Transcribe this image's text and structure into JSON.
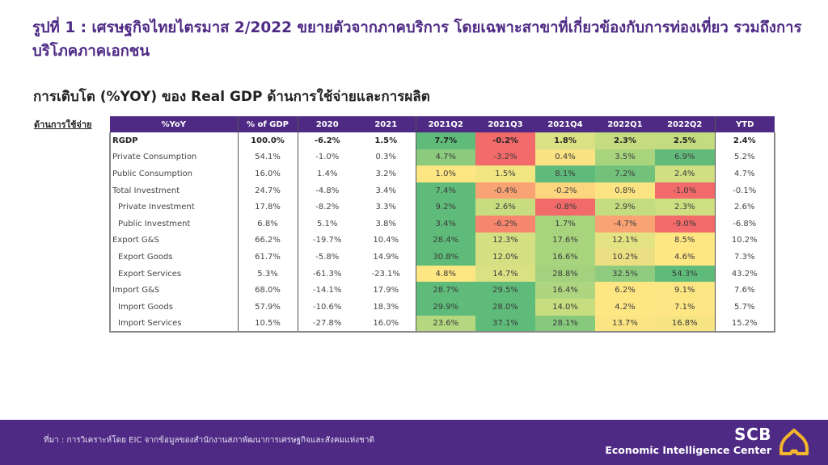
{
  "header": {
    "title": "รูปที่ 1 : เศรษฐกิจไทยไตรมาส 2/2022 ขยายตัวจากภาคบริการ โดยเฉพาะสาขาที่เกี่ยวข้องกับการท่องเที่ยว รวมถึงการบริโภคภาคเอกชน",
    "subtitle": "การเติบโต (%YOY) ของ Real GDP ด้านการใช้จ่ายและการผลิต",
    "side_label": "ด้านการใช้จ่าย"
  },
  "table": {
    "headers": [
      "%YoY",
      "% of GDP",
      "2020",
      "2021",
      "2021Q2",
      "2021Q3",
      "2021Q4",
      "2022Q1",
      "2022Q2",
      "YTD"
    ],
    "rows": [
      {
        "label": "RGDP",
        "indent": false,
        "bold": true,
        "values": [
          "100.0%",
          "-6.2%",
          "1.5%",
          "7.7%",
          "-0.2%",
          "1.8%",
          "2.3%",
          "2.5%",
          "2.4%"
        ],
        "heat": [
          "#5fbb7a",
          "#f26a6a",
          "#d9e184",
          "#c5dc80",
          "#c3dc80"
        ]
      },
      {
        "label": "Private Consumption",
        "indent": false,
        "bold": false,
        "values": [
          "54.1%",
          "-1.0%",
          "0.3%",
          "4.7%",
          "-3.2%",
          "0.4%",
          "3.5%",
          "6.9%",
          "5.2%"
        ],
        "heat": [
          "#8ccb7d",
          "#f26a6a",
          "#fbe283",
          "#a8d47e",
          "#63bb7b"
        ]
      },
      {
        "label": "Public Consumption",
        "indent": false,
        "bold": false,
        "values": [
          "16.0%",
          "1.4%",
          "3.2%",
          "1.0%",
          "1.5%",
          "8.1%",
          "7.2%",
          "2.4%",
          "4.7%"
        ],
        "heat": [
          "#fee683",
          "#f2e683",
          "#5fbb7a",
          "#72c27c",
          "#cfdf82"
        ]
      },
      {
        "label": "Total Investment",
        "indent": false,
        "bold": false,
        "values": [
          "24.7%",
          "-4.8%",
          "3.4%",
          "7.4%",
          "-0.4%",
          "-0.2%",
          "0.8%",
          "-1.0%",
          "-0.1%"
        ],
        "heat": [
          "#5fbb7a",
          "#f9a374",
          "#fcd57e",
          "#fde483",
          "#f26a6a"
        ]
      },
      {
        "label": "Private Investment",
        "indent": true,
        "bold": false,
        "values": [
          "17.8%",
          "-8.2%",
          "3.3%",
          "9.2%",
          "2.6%",
          "-0.8%",
          "2.9%",
          "2.3%",
          "2.6%"
        ],
        "heat": [
          "#5fbb7a",
          "#c8dd80",
          "#f26a6a",
          "#c4dc80",
          "#cddf81"
        ]
      },
      {
        "label": "Public Investment",
        "indent": true,
        "bold": false,
        "values": [
          "6.8%",
          "5.1%",
          "3.8%",
          "3.4%",
          "-6.2%",
          "1.7%",
          "-4.7%",
          "-9.0%",
          "-6.8%"
        ],
        "heat": [
          "#5fbb7a",
          "#f6866e",
          "#a8d47e",
          "#f9a374",
          "#f26a6a"
        ]
      },
      {
        "label": "Export G&S",
        "indent": false,
        "bold": false,
        "values": [
          "66.2%",
          "-19.7%",
          "10.4%",
          "28.4%",
          "12.3%",
          "17.6%",
          "12.1%",
          "8.5%",
          "10.2%"
        ],
        "heat": [
          "#5fbb7a",
          "#d4e082",
          "#a8d47e",
          "#e3e383",
          "#fee683"
        ]
      },
      {
        "label": "Export Goods",
        "indent": true,
        "bold": false,
        "values": [
          "61.7%",
          "-5.8%",
          "14.9%",
          "30.8%",
          "12.0%",
          "16.6%",
          "10.2%",
          "4.6%",
          "7.3%"
        ],
        "heat": [
          "#5fbb7a",
          "#d4e082",
          "#a8d47e",
          "#ecdf83",
          "#fee683"
        ]
      },
      {
        "label": "Export Services",
        "indent": true,
        "bold": false,
        "values": [
          "5.3%",
          "-61.3%",
          "-23.1%",
          "4.8%",
          "14.7%",
          "28.8%",
          "32.5%",
          "54.3%",
          "43.2%"
        ],
        "heat": [
          "#fee683",
          "#d9e183",
          "#a3d17e",
          "#8fcb7e",
          "#5fbb7a"
        ]
      },
      {
        "label": "Import G&S",
        "indent": false,
        "bold": false,
        "values": [
          "68.0%",
          "-14.1%",
          "17.9%",
          "28.7%",
          "29.5%",
          "16.4%",
          "6.2%",
          "9.1%",
          "7.6%"
        ],
        "heat": [
          "#5fbb7a",
          "#5fbb7a",
          "#aed57f",
          "#fee683",
          "#fce683"
        ]
      },
      {
        "label": "Import Goods",
        "indent": true,
        "bold": false,
        "values": [
          "57.9%",
          "-10.6%",
          "18.3%",
          "29.9%",
          "28.0%",
          "14.0%",
          "4.2%",
          "7.1%",
          "5.7%"
        ],
        "heat": [
          "#5fbb7a",
          "#5fbb7a",
          "#c6dd80",
          "#fee683",
          "#fde683"
        ]
      },
      {
        "label": "Import Services",
        "indent": true,
        "bold": false,
        "values": [
          "10.5%",
          "-27.8%",
          "16.0%",
          "23.6%",
          "37.1%",
          "28.1%",
          "13.7%",
          "16.8%",
          "15.2%"
        ],
        "heat": [
          "#b5d77f",
          "#5fbb7a",
          "#86c97d",
          "#fde483",
          "#f6e483"
        ]
      }
    ]
  },
  "footer": {
    "source": "ที่มา : การวิเคราะห์โดย EIC จากข้อมูลของสำนักงานสภาพัฒนาการเศรษฐกิจและสังคมแห่งชาติ",
    "logo_brand": "SCB",
    "logo_name": "Economic Intelligence Center"
  },
  "colors": {
    "brand_purple": "#4e2a84",
    "logo_gold": "#f2b52c"
  }
}
